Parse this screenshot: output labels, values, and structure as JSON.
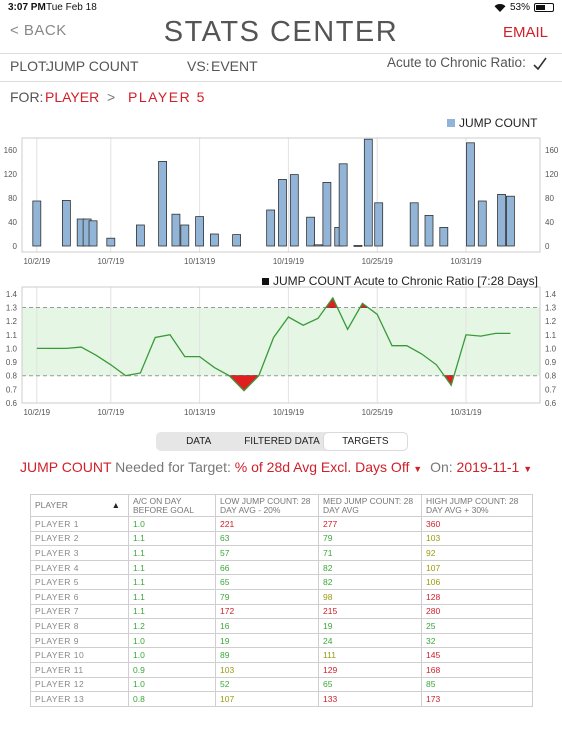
{
  "status_bar": {
    "time": "3:07 PM",
    "date": "Tue Feb 18",
    "battery": "53%",
    "battery_level": 0.53
  },
  "nav": {
    "back_label": "< BACK",
    "title": "STATS CENTER",
    "email_label": "EMAIL"
  },
  "controls": {
    "plot_label": "PLOT:",
    "plot_value": "JUMP COUNT",
    "vs_label": "VS:",
    "vs_value": "EVENT",
    "ratio_label": "Acute to Chronic Ratio:",
    "ratio_checked": true,
    "for_label": "FOR:",
    "for_value": "PLAYER",
    "crumb_sep": ">",
    "for_target": "PLAYER 5"
  },
  "colors": {
    "accent": "#d0202a",
    "bar": "#92b4d6",
    "line": "#3a9a3a",
    "band": "#e5f6e5",
    "alert": "#e02020"
  },
  "chart_data": [
    {
      "type": "bar",
      "legend": "JUMP COUNT",
      "x_ticks": [
        "10/2/19",
        "10/7/19",
        "10/13/19",
        "10/19/19",
        "10/25/19",
        "10/31/19"
      ],
      "x_range": [
        "2019-10-01",
        "2019-11-05"
      ],
      "ylim": [
        -10,
        180
      ],
      "y_ticks": [
        0,
        40,
        80,
        120,
        160
      ],
      "points": [
        {
          "x": "2019-10-02",
          "y": 75
        },
        {
          "x": "2019-10-04",
          "y": 76
        },
        {
          "x": "2019-10-05",
          "y": 45
        },
        {
          "x": "2019-10-05.4",
          "y": 45
        },
        {
          "x": "2019-10-05.8",
          "y": 42
        },
        {
          "x": "2019-10-07",
          "y": 13
        },
        {
          "x": "2019-10-09",
          "y": 35
        },
        {
          "x": "2019-10-10.5",
          "y": 141
        },
        {
          "x": "2019-10-11.4",
          "y": 53
        },
        {
          "x": "2019-10-12",
          "y": 35
        },
        {
          "x": "2019-10-13",
          "y": 49
        },
        {
          "x": "2019-10-14",
          "y": 20
        },
        {
          "x": "2019-10-15.5",
          "y": 19
        },
        {
          "x": "2019-10-17.8",
          "y": 60
        },
        {
          "x": "2019-10-18.6",
          "y": 111
        },
        {
          "x": "2019-10-19.4",
          "y": 119
        },
        {
          "x": "2019-10-20.5",
          "y": 48
        },
        {
          "x": "2019-10-21",
          "y": 2
        },
        {
          "x": "2019-10-21.6",
          "y": 106
        },
        {
          "x": "2019-10-22.4",
          "y": 31
        },
        {
          "x": "2019-10-22.7",
          "y": 137
        },
        {
          "x": "2019-10-23.7",
          "y": 1
        },
        {
          "x": "2019-10-24.4",
          "y": 178
        },
        {
          "x": "2019-10-25.1",
          "y": 72
        },
        {
          "x": "2019-10-27.5",
          "y": 72
        },
        {
          "x": "2019-10-28.5",
          "y": 51
        },
        {
          "x": "2019-10-29.5",
          "y": 31
        },
        {
          "x": "2019-10-31.3",
          "y": 172
        },
        {
          "x": "2019-11-01.1",
          "y": 75
        },
        {
          "x": "2019-11-02.4",
          "y": 86
        },
        {
          "x": "2019-11-03",
          "y": 83
        }
      ]
    },
    {
      "type": "line",
      "legend": "JUMP COUNT Acute to Chronic Ratio [7:28 Days]",
      "x_ticks": [
        "10/2/19",
        "10/7/19",
        "10/13/19",
        "10/19/19",
        "10/25/19",
        "10/31/19"
      ],
      "x_range": [
        "2019-10-01",
        "2019-11-05"
      ],
      "ylim": [
        0.6,
        1.45
      ],
      "y_ticks": [
        0.6,
        0.7,
        0.8,
        0.9,
        1.0,
        1.1,
        1.2,
        1.3,
        1.4
      ],
      "band": [
        0.8,
        1.3
      ],
      "points": [
        {
          "x": "2019-10-02",
          "y": 1.0
        },
        {
          "x": "2019-10-04",
          "y": 1.0
        },
        {
          "x": "2019-10-05",
          "y": 1.01
        },
        {
          "x": "2019-10-06",
          "y": 0.95
        },
        {
          "x": "2019-10-07",
          "y": 0.88
        },
        {
          "x": "2019-10-08",
          "y": 0.8
        },
        {
          "x": "2019-10-09",
          "y": 0.82
        },
        {
          "x": "2019-10-10",
          "y": 1.08
        },
        {
          "x": "2019-10-11",
          "y": 1.1
        },
        {
          "x": "2019-10-12",
          "y": 0.94
        },
        {
          "x": "2019-10-13",
          "y": 0.94
        },
        {
          "x": "2019-10-14",
          "y": 0.86
        },
        {
          "x": "2019-10-15",
          "y": 0.8
        },
        {
          "x": "2019-10-16",
          "y": 0.69
        },
        {
          "x": "2019-10-17",
          "y": 0.8
        },
        {
          "x": "2019-10-18",
          "y": 1.08
        },
        {
          "x": "2019-10-19",
          "y": 1.23
        },
        {
          "x": "2019-10-20",
          "y": 1.17
        },
        {
          "x": "2019-10-21",
          "y": 1.22
        },
        {
          "x": "2019-10-22",
          "y": 1.37
        },
        {
          "x": "2019-10-23",
          "y": 1.14
        },
        {
          "x": "2019-10-24",
          "y": 1.33
        },
        {
          "x": "2019-10-25",
          "y": 1.25
        },
        {
          "x": "2019-10-26",
          "y": 1.02
        },
        {
          "x": "2019-10-27",
          "y": 1.02
        },
        {
          "x": "2019-10-28",
          "y": 0.96
        },
        {
          "x": "2019-10-29",
          "y": 0.88
        },
        {
          "x": "2019-10-30",
          "y": 0.73
        },
        {
          "x": "2019-10-31",
          "y": 1.1
        },
        {
          "x": "2019-11-01",
          "y": 1.09
        },
        {
          "x": "2019-11-02",
          "y": 1.11
        },
        {
          "x": "2019-11-03",
          "y": 1.11
        }
      ]
    }
  ],
  "tabs": [
    {
      "label": "DATA"
    },
    {
      "label": "FILTERED DATA"
    },
    {
      "label": "TARGETS",
      "active": true
    }
  ],
  "needed": {
    "metric": "JUMP COUNT",
    "needed_label": "Needed for Target:",
    "target": "% of 28d Avg Excl. Days Off",
    "on_label": "On:",
    "date": "2019-11-1"
  },
  "table": {
    "headers": [
      "PLAYER",
      "A/C ON DAY BEFORE GOAL",
      "LOW JUMP COUNT: 28 DAY AVG - 20%",
      "MED JUMP COUNT: 28 DAY AVG",
      "HIGH JUMP COUNT: 28 DAY AVG + 30%"
    ],
    "sort_indicator": "▲",
    "rows": [
      {
        "player": "PLAYER 1",
        "ac": "1.0",
        "low": "221",
        "med": "277",
        "high": "360",
        "c": [
          "g",
          "r",
          "r",
          "r"
        ]
      },
      {
        "player": "PLAYER 2",
        "ac": "1.1",
        "low": "63",
        "med": "79",
        "high": "103",
        "c": [
          "g",
          "g",
          "g",
          "o"
        ]
      },
      {
        "player": "PLAYER 3",
        "ac": "1.1",
        "low": "57",
        "med": "71",
        "high": "92",
        "c": [
          "g",
          "g",
          "g",
          "o"
        ]
      },
      {
        "player": "PLAYER 4",
        "ac": "1.1",
        "low": "66",
        "med": "82",
        "high": "107",
        "c": [
          "g",
          "g",
          "g",
          "o"
        ]
      },
      {
        "player": "PLAYER 5",
        "ac": "1.1",
        "low": "65",
        "med": "82",
        "high": "106",
        "c": [
          "g",
          "g",
          "g",
          "o"
        ]
      },
      {
        "player": "PLAYER 6",
        "ac": "1.1",
        "low": "79",
        "med": "98",
        "high": "128",
        "c": [
          "g",
          "g",
          "o",
          "r"
        ]
      },
      {
        "player": "PLAYER 7",
        "ac": "1.1",
        "low": "172",
        "med": "215",
        "high": "280",
        "c": [
          "g",
          "r",
          "r",
          "r"
        ]
      },
      {
        "player": "PLAYER 8",
        "ac": "1.2",
        "low": "16",
        "med": "19",
        "high": "25",
        "c": [
          "g",
          "g",
          "g",
          "g"
        ]
      },
      {
        "player": "PLAYER 9",
        "ac": "1.0",
        "low": "19",
        "med": "24",
        "high": "32",
        "c": [
          "g",
          "g",
          "g",
          "g"
        ]
      },
      {
        "player": "PLAYER 10",
        "ac": "1.0",
        "low": "89",
        "med": "111",
        "high": "145",
        "c": [
          "g",
          "g",
          "o",
          "r"
        ]
      },
      {
        "player": "PLAYER 11",
        "ac": "0.9",
        "low": "103",
        "med": "129",
        "high": "168",
        "c": [
          "g",
          "o",
          "r",
          "r"
        ]
      },
      {
        "player": "PLAYER 12",
        "ac": "1.0",
        "low": "52",
        "med": "65",
        "high": "85",
        "c": [
          "g",
          "g",
          "g",
          "g"
        ]
      },
      {
        "player": "PLAYER 13",
        "ac": "0.8",
        "low": "107",
        "med": "133",
        "high": "173",
        "c": [
          "g",
          "o",
          "r",
          "r"
        ]
      }
    ]
  }
}
